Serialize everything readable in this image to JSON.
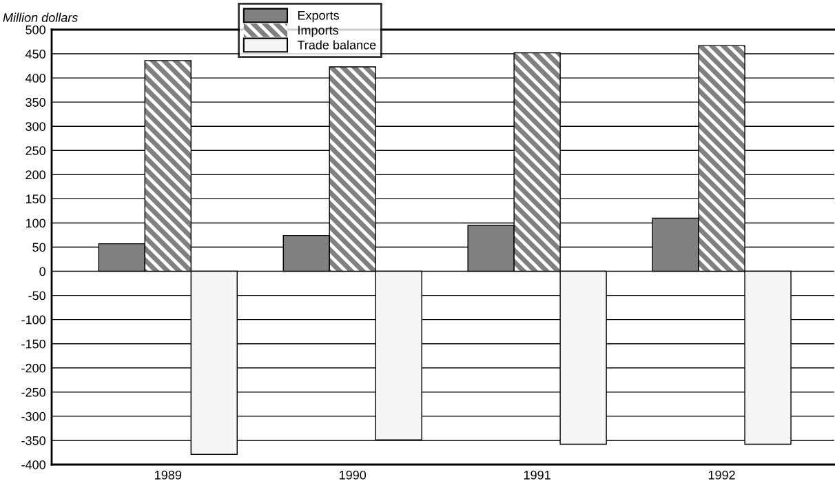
{
  "chart_data": {
    "type": "bar",
    "ylabel": "Million dollars",
    "categories": [
      "1989",
      "1990",
      "1991",
      "1992"
    ],
    "series": [
      {
        "name": "Exports",
        "color": "#808080",
        "values": [
          57,
          74,
          95,
          110
        ]
      },
      {
        "name": "Imports",
        "color": "#808080",
        "values": [
          436,
          423,
          452,
          467
        ]
      },
      {
        "name": "Trade balance",
        "color": "#f5f5f5",
        "values": [
          -379,
          -349,
          -358,
          -358
        ]
      }
    ],
    "ylim": [
      -400,
      500
    ],
    "yticks": [
      -400,
      -350,
      -300,
      -250,
      -200,
      -150,
      -100,
      -50,
      0,
      50,
      100,
      150,
      200,
      250,
      300,
      350,
      400,
      450,
      500
    ],
    "grid": "y",
    "legend": "top"
  }
}
